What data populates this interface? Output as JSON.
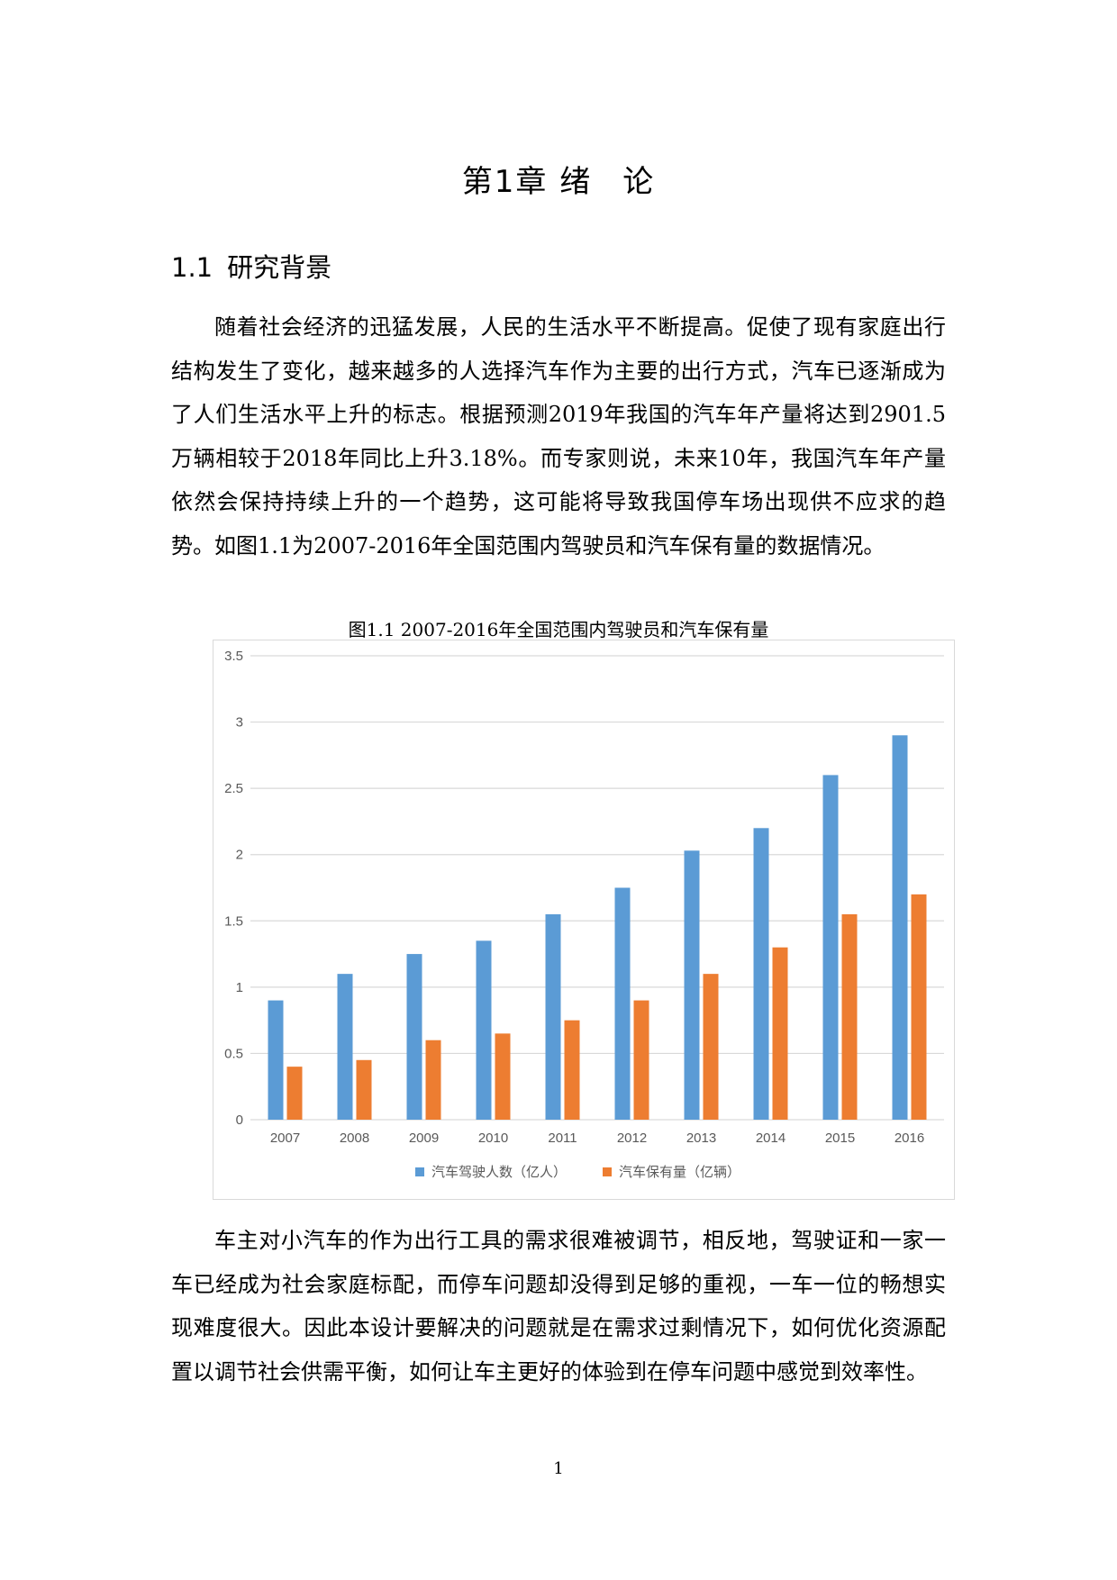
{
  "document": {
    "chapter": {
      "prefix": "第1章",
      "part1": "绪",
      "part2": "论"
    },
    "section": {
      "number": "1.1",
      "title": "研究背景"
    },
    "paragraphs": [
      "随着社会经济的迅猛发展，人民的生活水平不断提高。促使了现有家庭出行结构发生了变化，越来越多的人选择汽车作为主要的出行方式，汽车已逐渐成为了人们生活水平上升的标志。根据预测2019年我国的汽车年产量将达到2901.5万辆相较于2018年同比上升3.18%。而专家则说，未来10年，我国汽车年产量依然会保持持续上升的一个趋势，这可能将导致我国停车场出现供不应求的趋势。如图1.1为2007-2016年全国范围内驾驶员和汽车保有量的数据情况。",
      "车主对小汽车的作为出行工具的需求很难被调节，相反地，驾驶证和一家一车已经成为社会家庭标配，而停车问题却没得到足够的重视，一车一位的畅想实现难度很大。因此本设计要解决的问题就是在需求过剩情况下，如何优化资源配置以调节社会供需平衡，如何让车主更好的体验到在停车问题中感觉到效率性。"
    ],
    "figure_caption": "图1.1  2007-2016年全国范围内驾驶员和汽车保有量",
    "page_number": "1"
  },
  "chart_data": {
    "type": "bar",
    "categories": [
      "2007",
      "2008",
      "2009",
      "2010",
      "2011",
      "2012",
      "2013",
      "2014",
      "2015",
      "2016"
    ],
    "series": [
      {
        "name": "汽车驾驶人数（亿人）",
        "color": "#5b9bd5",
        "values": [
          0.9,
          1.1,
          1.25,
          1.35,
          1.55,
          1.75,
          2.03,
          2.2,
          2.6,
          2.9
        ]
      },
      {
        "name": "汽车保有量（亿辆）",
        "color": "#ed7d31",
        "values": [
          0.4,
          0.45,
          0.6,
          0.65,
          0.75,
          0.9,
          1.1,
          1.3,
          1.55,
          1.7
        ]
      }
    ],
    "yticks": [
      "0",
      "0.5",
      "1",
      "1.5",
      "2",
      "2.5",
      "3",
      "3.5"
    ],
    "ylim": [
      0,
      3.5
    ],
    "grid": true,
    "legend_position": "bottom"
  }
}
